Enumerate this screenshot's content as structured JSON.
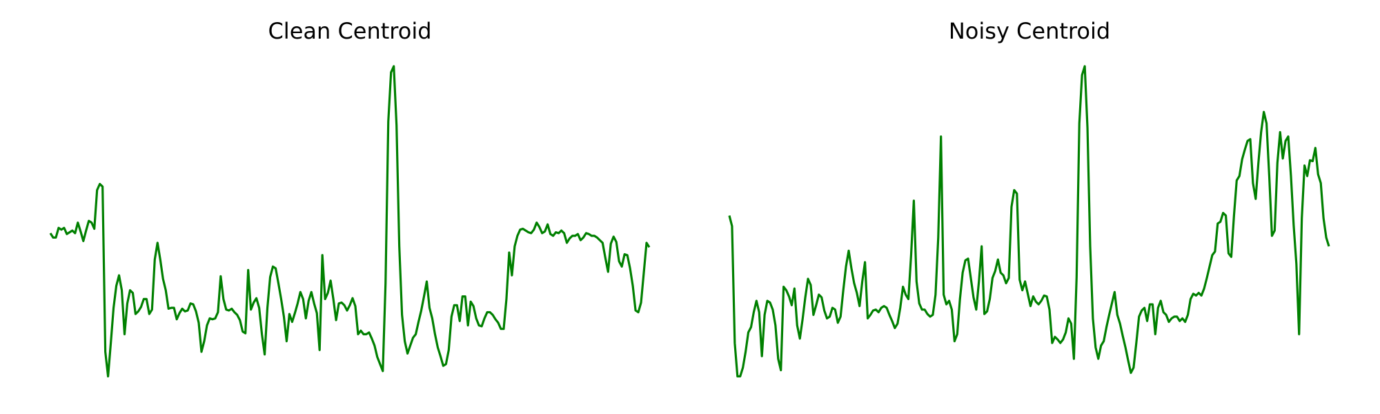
{
  "chart_data": [
    {
      "type": "line",
      "title": "Clean Centroid",
      "color": "#008000",
      "ylim": [
        0,
        355
      ],
      "values": [
        165,
        160,
        160,
        171,
        169,
        171,
        164,
        166,
        168,
        165,
        177,
        167,
        156,
        168,
        179,
        177,
        170,
        214,
        221,
        218,
        30,
        2,
        40,
        80,
        105,
        117,
        100,
        50,
        85,
        100,
        97,
        73,
        76,
        81,
        90,
        90,
        73,
        78,
        135,
        154,
        135,
        113,
        100,
        79,
        80,
        80,
        67,
        74,
        79,
        76,
        77,
        85,
        84,
        76,
        63,
        30,
        42,
        60,
        68,
        67,
        68,
        75,
        116,
        90,
        78,
        77,
        79,
        75,
        72,
        66,
        53,
        51,
        123,
        78,
        86,
        91,
        80,
        50,
        27,
        80,
        115,
        127,
        125,
        108,
        90,
        70,
        42,
        73,
        64,
        74,
        85,
        98,
        90,
        68,
        88,
        98,
        85,
        74,
        32,
        140,
        90,
        97,
        111,
        90,
        66,
        85,
        86,
        83,
        77,
        83,
        91,
        82,
        50,
        54,
        50,
        50,
        52,
        45,
        37,
        24,
        16,
        8,
        108,
        292,
        348,
        355,
        288,
        150,
        72,
        42,
        28,
        37,
        46,
        50,
        64,
        77,
        93,
        110,
        80,
        68,
        50,
        35,
        25,
        14,
        16,
        32,
        70,
        83,
        83,
        65,
        93,
        93,
        60,
        87,
        82,
        68,
        60,
        59,
        68,
        75,
        75,
        72,
        67,
        63,
        56,
        56,
        90,
        143,
        117,
        150,
        162,
        169,
        170,
        168,
        166,
        165,
        169,
        177,
        172,
        165,
        167,
        175,
        164,
        162,
        166,
        165,
        168,
        165,
        154,
        159,
        162,
        162,
        164,
        157,
        160,
        165,
        164,
        162,
        162,
        160,
        157,
        154,
        137,
        121,
        153,
        161,
        155,
        133,
        127,
        141,
        140,
        125,
        105,
        77,
        75,
        86,
        120,
        154,
        149
      ]
    },
    {
      "type": "line",
      "title": "Noisy Centroid",
      "color": "#008000",
      "ylim": [
        0,
        355
      ],
      "values": [
        185,
        173,
        40,
        2,
        2,
        12,
        30,
        52,
        58,
        75,
        88,
        75,
        25,
        72,
        88,
        86,
        78,
        60,
        22,
        9,
        104,
        100,
        93,
        83,
        102,
        60,
        45,
        67,
        92,
        113,
        106,
        72,
        83,
        95,
        92,
        77,
        68,
        70,
        80,
        78,
        63,
        70,
        100,
        127,
        145,
        125,
        108,
        97,
        82,
        110,
        132,
        68,
        72,
        77,
        78,
        75,
        80,
        82,
        80,
        72,
        65,
        57,
        62,
        80,
        104,
        95,
        90,
        140,
        202,
        110,
        85,
        78,
        78,
        73,
        70,
        72,
        95,
        160,
        275,
        95,
        84,
        88,
        78,
        42,
        50,
        90,
        120,
        134,
        136,
        114,
        92,
        78,
        110,
        150,
        73,
        76,
        90,
        114,
        122,
        135,
        120,
        117,
        108,
        114,
        195,
        214,
        210,
        112,
        100,
        110,
        96,
        82,
        93,
        87,
        84,
        88,
        94,
        93,
        78,
        40,
        47,
        44,
        40,
        44,
        52,
        68,
        62,
        22,
        115,
        290,
        345,
        355,
        285,
        150,
        68,
        35,
        22,
        37,
        42,
        58,
        72,
        85,
        98,
        72,
        62,
        48,
        35,
        20,
        6,
        12,
        40,
        70,
        77,
        80,
        65,
        84,
        84,
        50,
        80,
        88,
        75,
        72,
        64,
        68,
        70,
        70,
        65,
        68,
        64,
        72,
        90,
        96,
        94,
        97,
        94,
        102,
        114,
        127,
        140,
        144,
        176,
        178,
        188,
        185,
        142,
        138,
        185,
        225,
        230,
        249,
        260,
        270,
        272,
        222,
        204,
        245,
        280,
        303,
        290,
        230,
        162,
        168,
        245,
        280,
        250,
        270,
        275,
        230,
        174,
        130,
        50,
        182,
        242,
        230,
        248,
        247,
        262,
        232,
        222,
        182,
        160,
        150
      ]
    }
  ]
}
